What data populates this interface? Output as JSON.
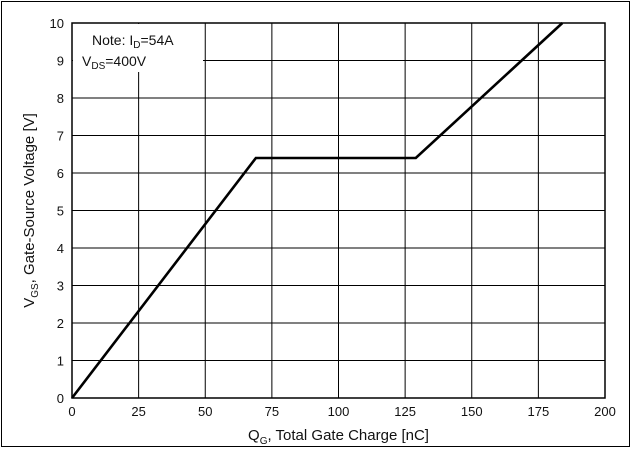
{
  "chart_data": {
    "type": "line",
    "title": "",
    "xlabel": {
      "main": "Q",
      "sub": "G",
      "rest": ", Total Gate Charge [nC]"
    },
    "ylabel": {
      "main": "V",
      "sub": "GS",
      "rest": ", Gate-Source Voltage [V]"
    },
    "xlim": [
      0,
      200
    ],
    "ylim": [
      0,
      10
    ],
    "x_ticks": [
      "0",
      "25",
      "50",
      "75",
      "100",
      "125",
      "150",
      "175",
      "200"
    ],
    "y_ticks": [
      "0",
      "1",
      "2",
      "3",
      "4",
      "5",
      "6",
      "7",
      "8",
      "9",
      "10"
    ],
    "grid": true,
    "series": [
      {
        "x": [
          0,
          69,
          129,
          184
        ],
        "y": [
          0,
          6.4,
          6.4,
          10
        ]
      }
    ],
    "note": {
      "line1": {
        "prefix": "Note: I",
        "sub": "D",
        "suffix": "=54A"
      },
      "line2": {
        "prefix": "V",
        "sub": "DS",
        "suffix": "=400V"
      }
    }
  }
}
